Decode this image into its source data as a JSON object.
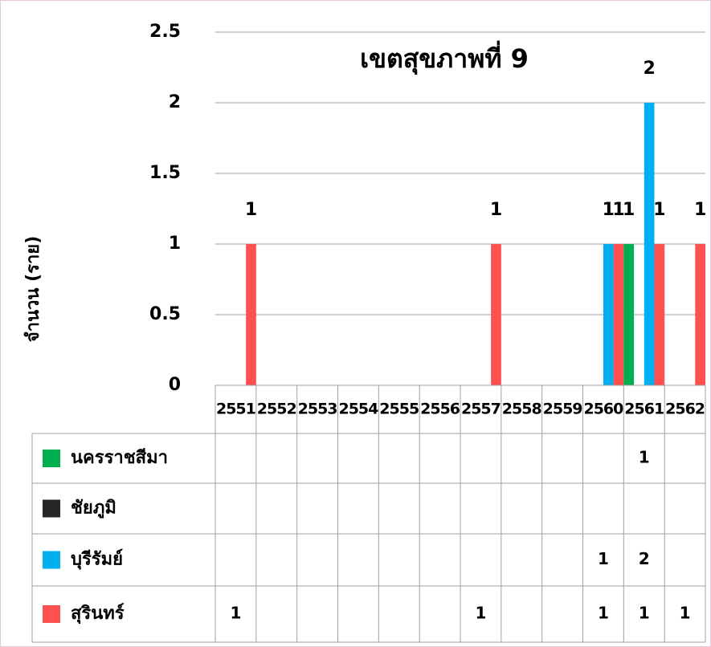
{
  "chart_data": {
    "type": "bar",
    "title": "เขตสุขภาพที่ 9",
    "y_label": "จำนวน (ราย)",
    "categories": [
      "2551",
      "2552",
      "2553",
      "2554",
      "2555",
      "2556",
      "2557",
      "2558",
      "2559",
      "2560",
      "2561",
      "2562"
    ],
    "series": [
      {
        "name": "นครราชสีมา",
        "color": "#00b050",
        "values": [
          null,
          null,
          null,
          null,
          null,
          null,
          null,
          null,
          null,
          null,
          1,
          null
        ]
      },
      {
        "name": "ชัยภูมิ",
        "color": "#262626",
        "values": [
          null,
          null,
          null,
          null,
          null,
          null,
          null,
          null,
          null,
          null,
          null,
          null
        ]
      },
      {
        "name": "บุรีรัมย์",
        "color": "#00b0f0",
        "values": [
          null,
          null,
          null,
          null,
          null,
          null,
          null,
          null,
          null,
          1,
          2,
          null
        ]
      },
      {
        "name": "สุรินทร์",
        "color": "#ff5050",
        "values": [
          1,
          null,
          null,
          null,
          null,
          null,
          1,
          null,
          null,
          1,
          1,
          1
        ]
      }
    ],
    "ylim": [
      0,
      2.5
    ],
    "yticks": [
      0,
      0.5,
      1,
      1.5,
      2,
      2.5
    ],
    "grid": true,
    "data_table": true
  }
}
